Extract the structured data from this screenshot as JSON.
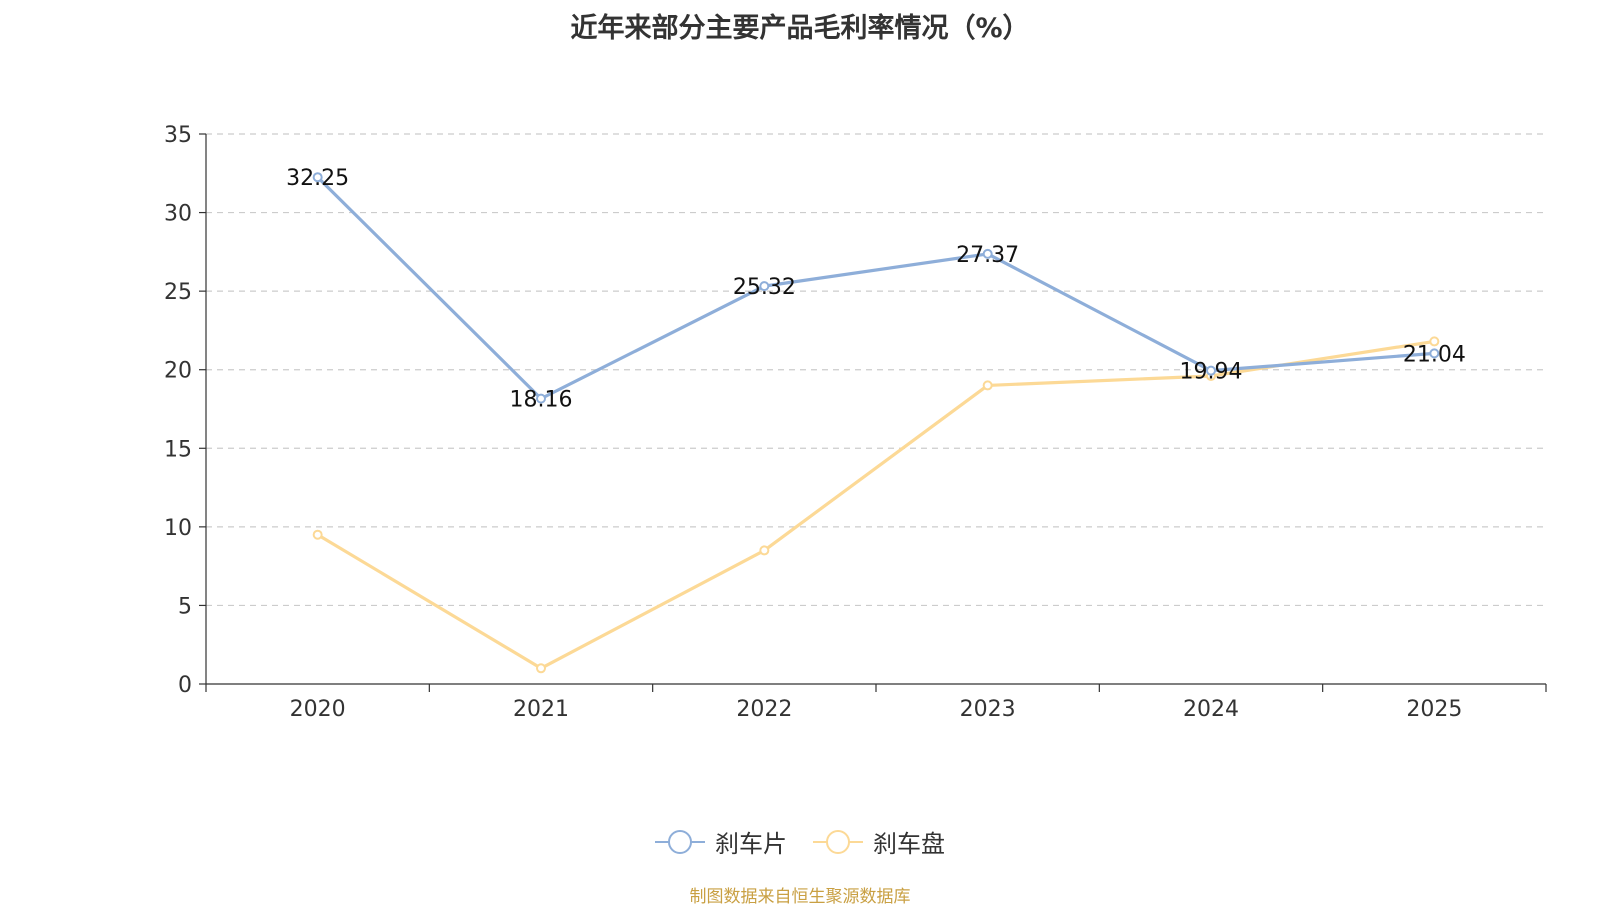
{
  "chart_data": {
    "type": "line",
    "title": "近年来部分主要产品毛利率情况（%）",
    "categories": [
      "2020",
      "2021",
      "2022",
      "2023",
      "2024",
      "2025"
    ],
    "ylim": [
      0,
      35
    ],
    "yticks": [
      "0",
      "5",
      "10",
      "15",
      "20",
      "25",
      "30",
      "35"
    ],
    "grid": true,
    "legend_position": "bottom-center",
    "series": [
      {
        "name": "刹车片",
        "color": "#8eaed9",
        "values": [
          32.25,
          18.16,
          25.32,
          27.37,
          19.94,
          21.04
        ],
        "labels": [
          "32.25",
          "18.16",
          "25.32",
          "27.37",
          "19.94",
          "21.04"
        ]
      },
      {
        "name": "刹车盘",
        "color": "#fcd996",
        "values": [
          9.5,
          1.0,
          8.5,
          19.0,
          19.6,
          21.8
        ]
      }
    ],
    "source": "制图数据来自恒生聚源数据库"
  }
}
